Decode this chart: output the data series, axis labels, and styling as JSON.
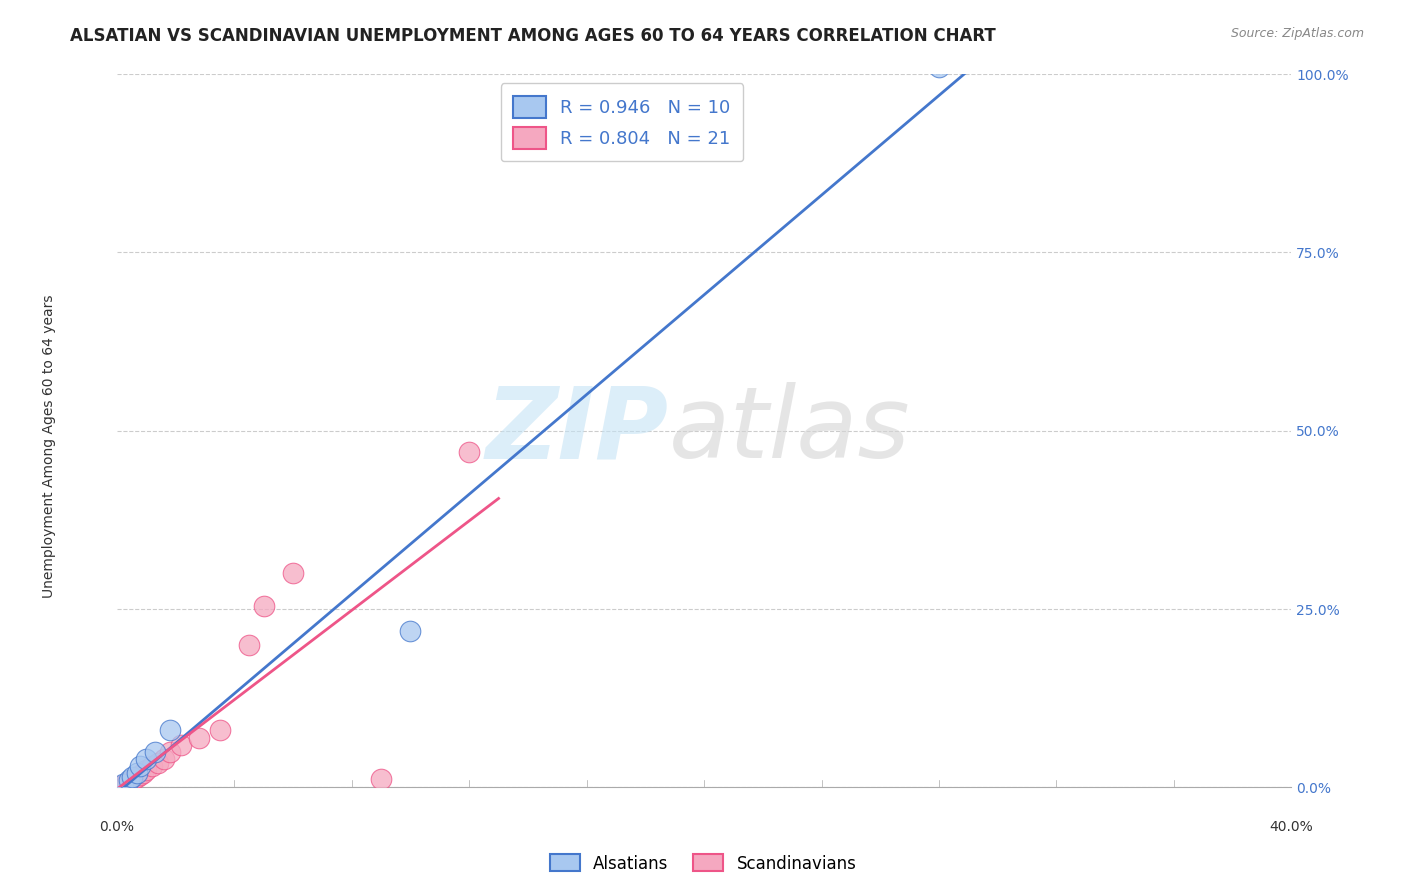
{
  "title": "ALSATIAN VS SCANDINAVIAN UNEMPLOYMENT AMONG AGES 60 TO 64 YEARS CORRELATION CHART",
  "source": "Source: ZipAtlas.com",
  "ylabel": "Unemployment Among Ages 60 to 64 years",
  "xlim": [
    0,
    40
  ],
  "ylim": [
    0,
    100
  ],
  "ytick_vals": [
    0,
    25,
    50,
    75,
    100
  ],
  "ytick_labels": [
    "0.0%",
    "25.0%",
    "50.0%",
    "75.0%",
    "100.0%"
  ],
  "xtick_labels_shown": [
    "0.0%",
    "40.0%"
  ],
  "alsatian_color": "#a8c8f0",
  "scandinavian_color": "#f5a8c0",
  "alsatian_line_color": "#4477cc",
  "scandinavian_line_color": "#ee5588",
  "alsatian_points": [
    [
      0.2,
      0.5
    ],
    [
      0.4,
      1.0
    ],
    [
      0.5,
      1.5
    ],
    [
      0.7,
      2.0
    ],
    [
      0.8,
      3.0
    ],
    [
      1.0,
      4.0
    ],
    [
      1.3,
      5.0
    ],
    [
      1.8,
      8.0
    ],
    [
      10.0,
      22.0
    ],
    [
      28.0,
      101.0
    ]
  ],
  "scandinavian_points": [
    [
      0.2,
      0.3
    ],
    [
      0.3,
      0.5
    ],
    [
      0.4,
      0.8
    ],
    [
      0.5,
      1.0
    ],
    [
      0.6,
      1.2
    ],
    [
      0.7,
      1.5
    ],
    [
      0.8,
      1.8
    ],
    [
      0.9,
      2.0
    ],
    [
      1.0,
      2.5
    ],
    [
      1.2,
      3.0
    ],
    [
      1.4,
      3.5
    ],
    [
      1.6,
      4.0
    ],
    [
      1.8,
      5.0
    ],
    [
      2.2,
      6.0
    ],
    [
      2.8,
      7.0
    ],
    [
      3.5,
      8.0
    ],
    [
      4.5,
      20.0
    ],
    [
      5.0,
      25.5
    ],
    [
      9.0,
      1.2
    ],
    [
      6.0,
      30.0
    ],
    [
      12.0,
      47.0
    ]
  ],
  "background_color": "#ffffff",
  "grid_color": "#cccccc",
  "watermark_zip_color": "#c5e3f5",
  "watermark_atlas_color": "#d5d5d5"
}
